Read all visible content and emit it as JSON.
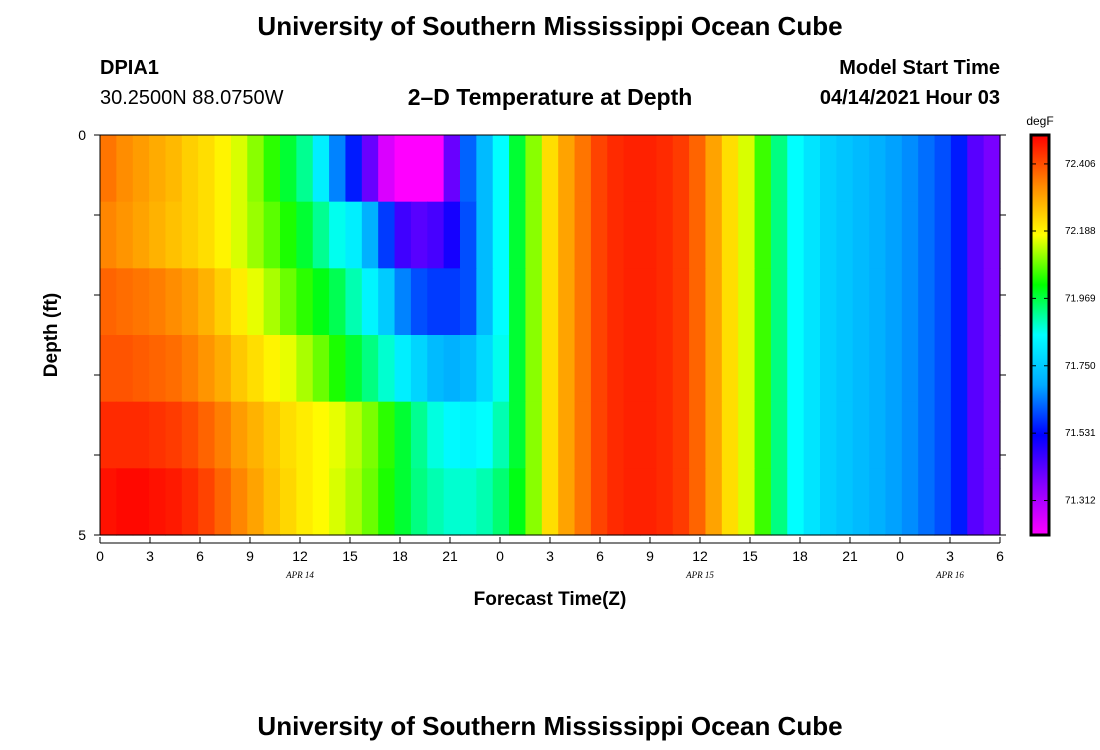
{
  "header": {
    "title": "University of Southern Mississippi Ocean Cube",
    "station_id": "DPIA1",
    "station_coords": "30.2500N  88.0750W",
    "plot_title": "2–D Temperature at Depth",
    "model_start_label": "Model Start Time",
    "model_start_value": "04/14/2021 Hour 03"
  },
  "footer": {
    "title": "University of Southern Mississippi Ocean Cube"
  },
  "chart_data": {
    "type": "heatmap",
    "xlabel": "Forecast Time(Z)",
    "ylabel": "Depth (ft)",
    "ylim": [
      0,
      5
    ],
    "y_tick_labels": [
      "0",
      "5"
    ],
    "x_tick_labels": [
      "0",
      "3",
      "6",
      "9",
      "12",
      "15",
      "18",
      "21",
      "0",
      "3",
      "6",
      "9",
      "12",
      "15",
      "18",
      "21",
      "0",
      "3",
      "6"
    ],
    "date_labels": [
      {
        "text": "APR 14",
        "hour_index": 12
      },
      {
        "text": "APR 15",
        "hour_index": 36
      },
      {
        "text": "APR 16",
        "hour_index": 51
      }
    ],
    "colorbar": {
      "unit": "degF",
      "min": 71.2,
      "max": 72.5,
      "tick_labels": [
        "72.406",
        "72.188",
        "71.969",
        "71.750",
        "71.531",
        "71.312"
      ],
      "tick_values": [
        72.406,
        72.188,
        71.969,
        71.75,
        71.531,
        71.312
      ],
      "colors": [
        "#ff00ff",
        "#8800ff",
        "#0000ff",
        "#00aaff",
        "#00ffff",
        "#00ff00",
        "#ffff00",
        "#ff8800",
        "#ff0000"
      ]
    },
    "x_hours": "0 to 54, hourly",
    "depth_levels": [
      0,
      1,
      2,
      3,
      4,
      5
    ],
    "rows": [
      [
        72.36,
        72.33,
        72.31,
        72.29,
        72.27,
        72.24,
        72.22,
        72.19,
        72.15,
        72.1,
        72.04,
        71.98,
        71.92,
        71.82,
        71.65,
        71.55,
        71.4,
        71.25,
        71.17,
        71.17,
        71.2,
        71.4,
        71.62,
        71.72,
        71.85,
        71.98,
        72.1,
        72.22,
        72.3,
        72.36,
        72.42,
        72.45,
        72.46,
        72.46,
        72.45,
        72.43,
        72.38,
        72.3,
        72.22,
        72.15,
        72.05,
        71.93,
        71.85,
        71.8,
        71.76,
        71.74,
        71.72,
        71.7,
        71.68,
        71.66,
        71.63,
        71.6,
        71.55,
        71.42,
        71.38
      ],
      [
        72.34,
        72.32,
        72.3,
        72.28,
        72.26,
        72.24,
        72.22,
        72.19,
        72.15,
        72.11,
        72.07,
        72.03,
        71.98,
        71.92,
        71.86,
        71.82,
        71.7,
        71.58,
        71.45,
        71.42,
        71.44,
        71.5,
        71.6,
        71.72,
        71.85,
        71.98,
        72.1,
        72.22,
        72.3,
        72.36,
        72.42,
        72.45,
        72.46,
        72.46,
        72.45,
        72.43,
        72.38,
        72.3,
        72.22,
        72.15,
        72.05,
        71.93,
        71.85,
        71.8,
        71.76,
        71.74,
        71.72,
        71.7,
        71.68,
        71.66,
        71.63,
        71.6,
        71.55,
        71.42,
        71.38
      ],
      [
        72.38,
        72.37,
        72.36,
        72.35,
        72.33,
        72.31,
        72.28,
        72.24,
        72.2,
        72.16,
        72.12,
        72.08,
        72.04,
        72.0,
        71.96,
        71.9,
        71.83,
        71.75,
        71.65,
        71.6,
        71.58,
        71.58,
        71.6,
        71.72,
        71.85,
        71.98,
        72.1,
        72.22,
        72.3,
        72.36,
        72.42,
        72.45,
        72.46,
        72.46,
        72.45,
        72.43,
        72.38,
        72.3,
        72.22,
        72.15,
        72.05,
        71.93,
        71.85,
        71.8,
        71.76,
        71.74,
        71.72,
        71.7,
        71.68,
        71.66,
        71.63,
        71.6,
        71.55,
        71.42,
        71.38
      ],
      [
        72.4,
        72.4,
        72.39,
        72.38,
        72.37,
        72.35,
        72.32,
        72.29,
        72.25,
        72.22,
        72.19,
        72.16,
        72.12,
        72.08,
        72.03,
        71.98,
        71.93,
        71.88,
        71.82,
        71.77,
        71.72,
        71.7,
        71.72,
        71.78,
        71.86,
        71.98,
        72.1,
        72.22,
        72.3,
        72.36,
        72.42,
        72.45,
        72.46,
        72.46,
        72.45,
        72.43,
        72.38,
        72.3,
        72.22,
        72.15,
        72.05,
        71.93,
        71.85,
        71.8,
        71.76,
        71.74,
        71.72,
        71.7,
        71.68,
        71.66,
        71.63,
        71.6,
        71.55,
        71.42,
        71.38
      ],
      [
        72.45,
        72.45,
        72.45,
        72.44,
        72.43,
        72.41,
        72.38,
        72.35,
        72.31,
        72.28,
        72.25,
        72.22,
        72.2,
        72.18,
        72.16,
        72.13,
        72.09,
        72.04,
        71.98,
        71.92,
        71.87,
        71.84,
        71.83,
        71.85,
        71.9,
        71.98,
        72.1,
        72.22,
        72.3,
        72.36,
        72.42,
        72.45,
        72.46,
        72.46,
        72.45,
        72.43,
        72.38,
        72.3,
        72.22,
        72.15,
        72.05,
        71.93,
        71.85,
        71.8,
        71.76,
        71.74,
        71.72,
        71.7,
        71.68,
        71.66,
        71.63,
        71.6,
        71.55,
        71.42,
        71.38
      ],
      [
        72.48,
        72.49,
        72.49,
        72.48,
        72.47,
        72.45,
        72.42,
        72.38,
        72.34,
        72.3,
        72.26,
        72.23,
        72.2,
        72.18,
        72.15,
        72.12,
        72.08,
        72.03,
        71.98,
        71.93,
        71.9,
        71.88,
        71.88,
        71.9,
        71.94,
        72.0,
        72.1,
        72.22,
        72.3,
        72.36,
        72.42,
        72.45,
        72.46,
        72.46,
        72.45,
        72.43,
        72.38,
        72.3,
        72.22,
        72.15,
        72.05,
        71.93,
        71.85,
        71.8,
        71.76,
        71.74,
        71.72,
        71.7,
        71.68,
        71.66,
        71.63,
        71.6,
        71.55,
        71.42,
        71.38
      ]
    ]
  }
}
